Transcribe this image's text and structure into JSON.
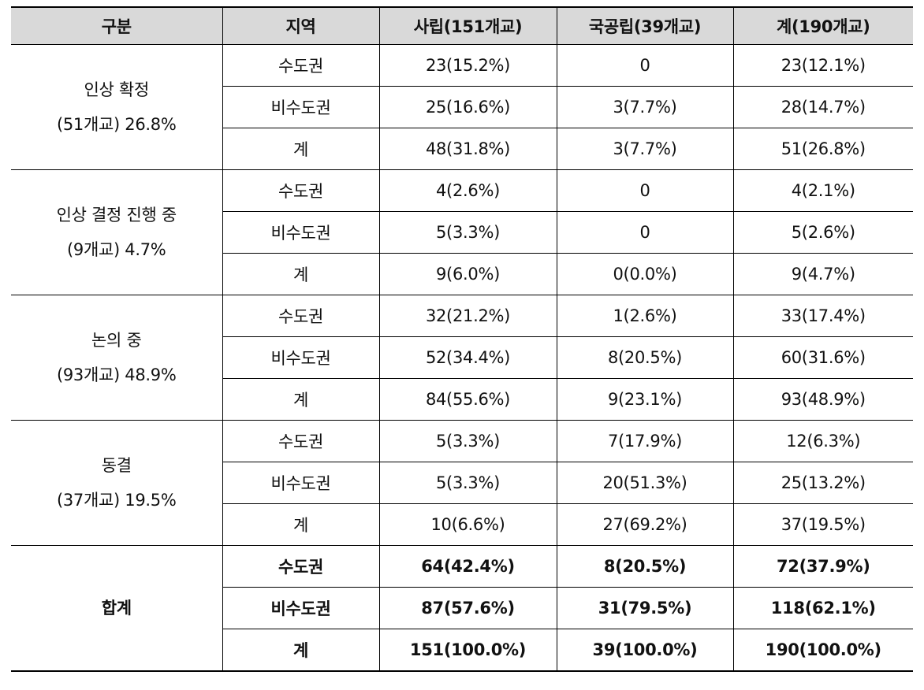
{
  "table": {
    "headers": [
      "구분",
      "지역",
      "사립(151개교)",
      "국공립(39개교)",
      "계(190개교)"
    ],
    "groups": [
      {
        "label_line1": "인상  확정",
        "label_line2": "(51개교)  26.8%",
        "rows": [
          {
            "region": "수도권",
            "private": "23(15.2%)",
            "public": "0",
            "total": "23(12.1%)"
          },
          {
            "region": "비수도권",
            "private": "25(16.6%)",
            "public": "3(7.7%)",
            "total": "28(14.7%)"
          },
          {
            "region": "계",
            "private": "48(31.8%)",
            "public": "3(7.7%)",
            "total": "51(26.8%)"
          }
        ]
      },
      {
        "label_line1": "인상  결정  진행  중",
        "label_line2": "(9개교)  4.7%",
        "rows": [
          {
            "region": "수도권",
            "private": "4(2.6%)",
            "public": "0",
            "total": "4(2.1%)"
          },
          {
            "region": "비수도권",
            "private": "5(3.3%)",
            "public": "0",
            "total": "5(2.6%)"
          },
          {
            "region": "계",
            "private": "9(6.0%)",
            "public": "0(0.0%)",
            "total": "9(4.7%)"
          }
        ]
      },
      {
        "label_line1": "논의  중",
        "label_line2": "(93개교)  48.9%",
        "rows": [
          {
            "region": "수도권",
            "private": "32(21.2%)",
            "public": "1(2.6%)",
            "total": "33(17.4%)"
          },
          {
            "region": "비수도권",
            "private": "52(34.4%)",
            "public": "8(20.5%)",
            "total": "60(31.6%)"
          },
          {
            "region": "계",
            "private": "84(55.6%)",
            "public": "9(23.1%)",
            "total": "93(48.9%)"
          }
        ]
      },
      {
        "label_line1": "동결",
        "label_line2": "(37개교)  19.5%",
        "rows": [
          {
            "region": "수도권",
            "private": "5(3.3%)",
            "public": "7(17.9%)",
            "total": "12(6.3%)"
          },
          {
            "region": "비수도권",
            "private": "5(3.3%)",
            "public": "20(51.3%)",
            "total": "25(13.2%)"
          },
          {
            "region": "계",
            "private": "10(6.6%)",
            "public": "27(69.2%)",
            "total": "37(19.5%)"
          }
        ]
      }
    ],
    "summary": {
      "label": "합계",
      "rows": [
        {
          "region": "수도권",
          "private": "64(42.4%)",
          "public": "8(20.5%)",
          "total": "72(37.9%)"
        },
        {
          "region": "비수도권",
          "private": "87(57.6%)",
          "public": "31(79.5%)",
          "total": "118(62.1%)"
        },
        {
          "region": "계",
          "private": "151(100.0%)",
          "public": "39(100.0%)",
          "total": "190(100.0%)"
        }
      ]
    },
    "colors": {
      "header_bg": "#d9d9d9",
      "border": "#000000",
      "text": "#111111"
    }
  }
}
